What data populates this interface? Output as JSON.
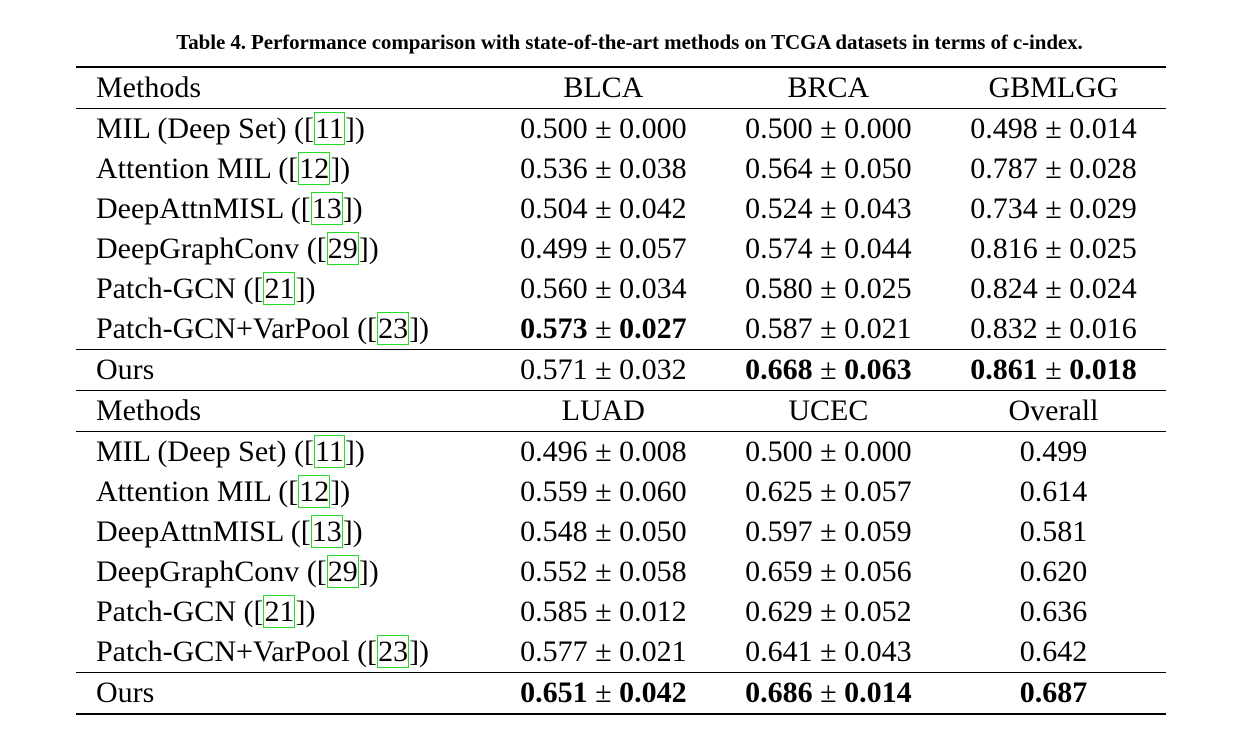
{
  "caption": "Table 4. Performance comparison with state-of-the-art methods on TCGA datasets in terms of c-index.",
  "block1": {
    "headers": [
      "Methods",
      "BLCA",
      "BRCA",
      "GBMLGG"
    ],
    "rows": [
      {
        "name": "MIL (Deep Set)",
        "ref": "11",
        "vals": [
          [
            "0.500",
            "0.000"
          ],
          [
            "0.500",
            "0.000"
          ],
          [
            "0.498",
            "0.014"
          ]
        ]
      },
      {
        "name": "Attention MIL",
        "ref": "12",
        "vals": [
          [
            "0.536",
            "0.038"
          ],
          [
            "0.564",
            "0.050"
          ],
          [
            "0.787",
            "0.028"
          ]
        ]
      },
      {
        "name": "DeepAttnMISL",
        "ref": "13",
        "vals": [
          [
            "0.504",
            "0.042"
          ],
          [
            "0.524",
            "0.043"
          ],
          [
            "0.734",
            "0.029"
          ]
        ]
      },
      {
        "name": "DeepGraphConv",
        "ref": "29",
        "vals": [
          [
            "0.499",
            "0.057"
          ],
          [
            "0.574",
            "0.044"
          ],
          [
            "0.816",
            "0.025"
          ]
        ]
      },
      {
        "name": "Patch-GCN",
        "ref": "21",
        "vals": [
          [
            "0.560",
            "0.034"
          ],
          [
            "0.580",
            "0.025"
          ],
          [
            "0.824",
            "0.024"
          ]
        ]
      },
      {
        "name": "Patch-GCN+VarPool",
        "ref": "23",
        "vals": [
          [
            "0.573",
            "0.027"
          ],
          [
            "0.587",
            "0.021"
          ],
          [
            "0.832",
            "0.016"
          ]
        ]
      },
      {
        "name": "Ours",
        "ref": "",
        "vals": [
          [
            "0.571",
            "0.032"
          ],
          [
            "0.668",
            "0.063"
          ],
          [
            "0.861",
            "0.018"
          ]
        ]
      }
    ]
  },
  "block2": {
    "headers": [
      "Methods",
      "LUAD",
      "UCEC",
      "Overall"
    ],
    "rows": [
      {
        "name": "MIL (Deep Set)",
        "ref": "11",
        "vals": [
          [
            "0.496",
            "0.008"
          ],
          [
            "0.500",
            "0.000"
          ],
          [
            "0.499",
            ""
          ]
        ]
      },
      {
        "name": "Attention MIL",
        "ref": "12",
        "vals": [
          [
            "0.559",
            "0.060"
          ],
          [
            "0.625",
            "0.057"
          ],
          [
            "0.614",
            ""
          ]
        ]
      },
      {
        "name": "DeepAttnMISL",
        "ref": "13",
        "vals": [
          [
            "0.548",
            "0.050"
          ],
          [
            "0.597",
            "0.059"
          ],
          [
            "0.581",
            ""
          ]
        ]
      },
      {
        "name": "DeepGraphConv",
        "ref": "29",
        "vals": [
          [
            "0.552",
            "0.058"
          ],
          [
            "0.659",
            "0.056"
          ],
          [
            "0.620",
            ""
          ]
        ]
      },
      {
        "name": "Patch-GCN",
        "ref": "21",
        "vals": [
          [
            "0.585",
            "0.012"
          ],
          [
            "0.629",
            "0.052"
          ],
          [
            "0.636",
            ""
          ]
        ]
      },
      {
        "name": "Patch-GCN+VarPool",
        "ref": "23",
        "vals": [
          [
            "0.577",
            "0.021"
          ],
          [
            "0.641",
            "0.043"
          ],
          [
            "0.642",
            ""
          ]
        ]
      },
      {
        "name": "Ours",
        "ref": "",
        "vals": [
          [
            "0.651",
            "0.042"
          ],
          [
            "0.686",
            "0.014"
          ],
          [
            "0.687",
            ""
          ]
        ]
      }
    ]
  },
  "pm_symbol": "±"
}
